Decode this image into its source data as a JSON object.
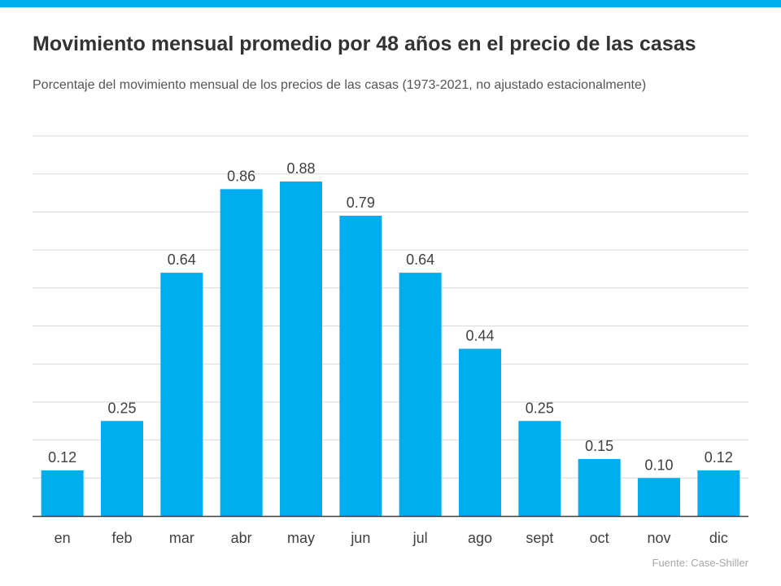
{
  "header": {
    "title": "Movimiento mensual promedio por 48 años en el precio de las casas",
    "subtitle": "Porcentaje del movimiento mensual de los precios de las casas (1973-2021, no ajustado estacionalmente)"
  },
  "footer": {
    "source": "Fuente:  Case-Shiller"
  },
  "colors": {
    "accent": "#00aeef",
    "bar": "#00aeef",
    "grid": "#d9d9d9",
    "axis": "#404040",
    "text": "#404040"
  },
  "chart_data": {
    "type": "bar",
    "title": "Movimiento mensual promedio por 48 años en el precio de las casas",
    "subtitle": "Porcentaje del movimiento mensual de los precios de las casas (1973-2021, no ajustado estacionalmente)",
    "categories": [
      "en",
      "feb",
      "mar",
      "abr",
      "may",
      "jun",
      "jul",
      "ago",
      "sept",
      "oct",
      "nov",
      "dic"
    ],
    "values": [
      0.12,
      0.25,
      0.64,
      0.86,
      0.88,
      0.79,
      0.64,
      0.44,
      0.25,
      0.15,
      0.1,
      0.12
    ],
    "value_labels": [
      "0.12",
      "0.25",
      "0.64",
      "0.86",
      "0.88",
      "0.79",
      "0.64",
      "0.44",
      "0.25",
      "0.15",
      "0.10",
      "0.12"
    ],
    "xlabel": "",
    "ylabel": "",
    "ylim": [
      0,
      1.0
    ],
    "grid_step": 0.1,
    "grid": true,
    "legend": "none"
  }
}
